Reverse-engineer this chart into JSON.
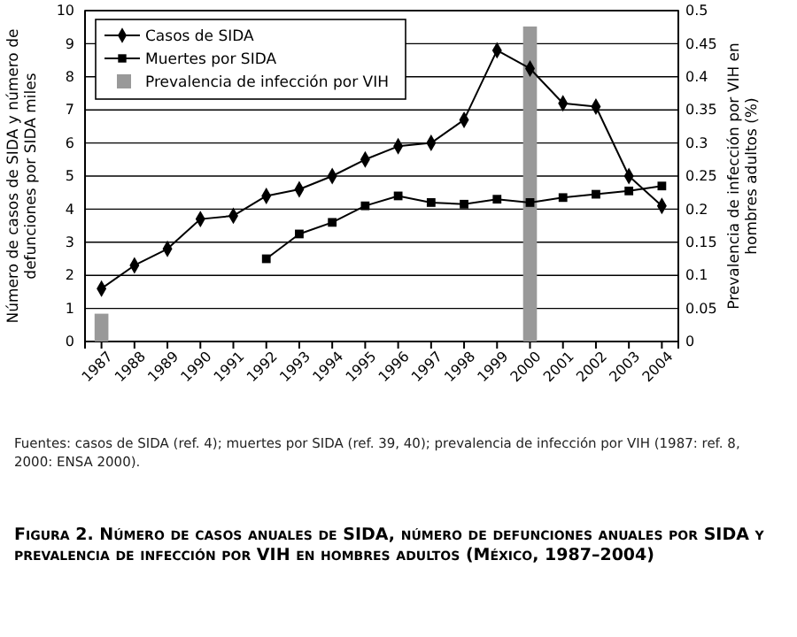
{
  "chart_data": {
    "type": "line",
    "title": "Figura 2. Número de casos anuales de SIDA, número de defunciones anuales por SIDA y prevalencia de infección por VIH en hombres adultos (México, 1987–2004)",
    "ylabel": "Número de casos de SIDA y número de defunciones por SIDA miles",
    "y2label": "Prevalencia de infección por VIH en hombres adultos (%)",
    "annotations": [
      "Fuentes: casos de SIDA (ref. 4); muertes por SIDA (ref. 39, 40); prevalencia de infección por VIH (1987: ref. 8, 2000: ENSA 2000)."
    ],
    "categories": [
      "1987",
      "1988",
      "1989",
      "1990",
      "1991",
      "1992",
      "1993",
      "1994",
      "1995",
      "1996",
      "1997",
      "1998",
      "1999",
      "2000",
      "2001",
      "2002",
      "2003",
      "2004"
    ],
    "series": [
      {
        "name": "Casos de SIDA",
        "color": "#000000",
        "marker": "diamond",
        "values": [
          1.6,
          2.3,
          2.8,
          3.7,
          3.8,
          4.4,
          4.6,
          5.0,
          5.5,
          5.9,
          6.0,
          6.7,
          8.8,
          8.25,
          7.2,
          7.1,
          5.0,
          4.1
        ]
      },
      {
        "name": "Muertes por SIDA",
        "color": "#000000",
        "marker": "square",
        "values": [
          null,
          null,
          null,
          null,
          null,
          2.5,
          3.25,
          3.6,
          4.1,
          4.4,
          4.2,
          4.15,
          4.3,
          4.2,
          4.35,
          4.45,
          4.55,
          4.7
        ]
      },
      {
        "name": "Prevalencia de infección por VIH",
        "type": "bar",
        "axis": "y2",
        "color": "#999999",
        "values": [
          0.042,
          null,
          null,
          null,
          null,
          null,
          null,
          null,
          null,
          null,
          null,
          null,
          null,
          0.476,
          null,
          null,
          null,
          null
        ]
      }
    ],
    "ylim": [
      0,
      10
    ],
    "yticks": [
      0,
      1,
      2,
      3,
      4,
      5,
      6,
      7,
      8,
      9,
      10
    ],
    "y2lim": [
      0,
      0.5
    ],
    "y2ticks": [
      0,
      0.05,
      0.1,
      0.15,
      0.2,
      0.25,
      0.3,
      0.35,
      0.4,
      0.45,
      0.5
    ],
    "grid": "y",
    "legend": "top left"
  }
}
